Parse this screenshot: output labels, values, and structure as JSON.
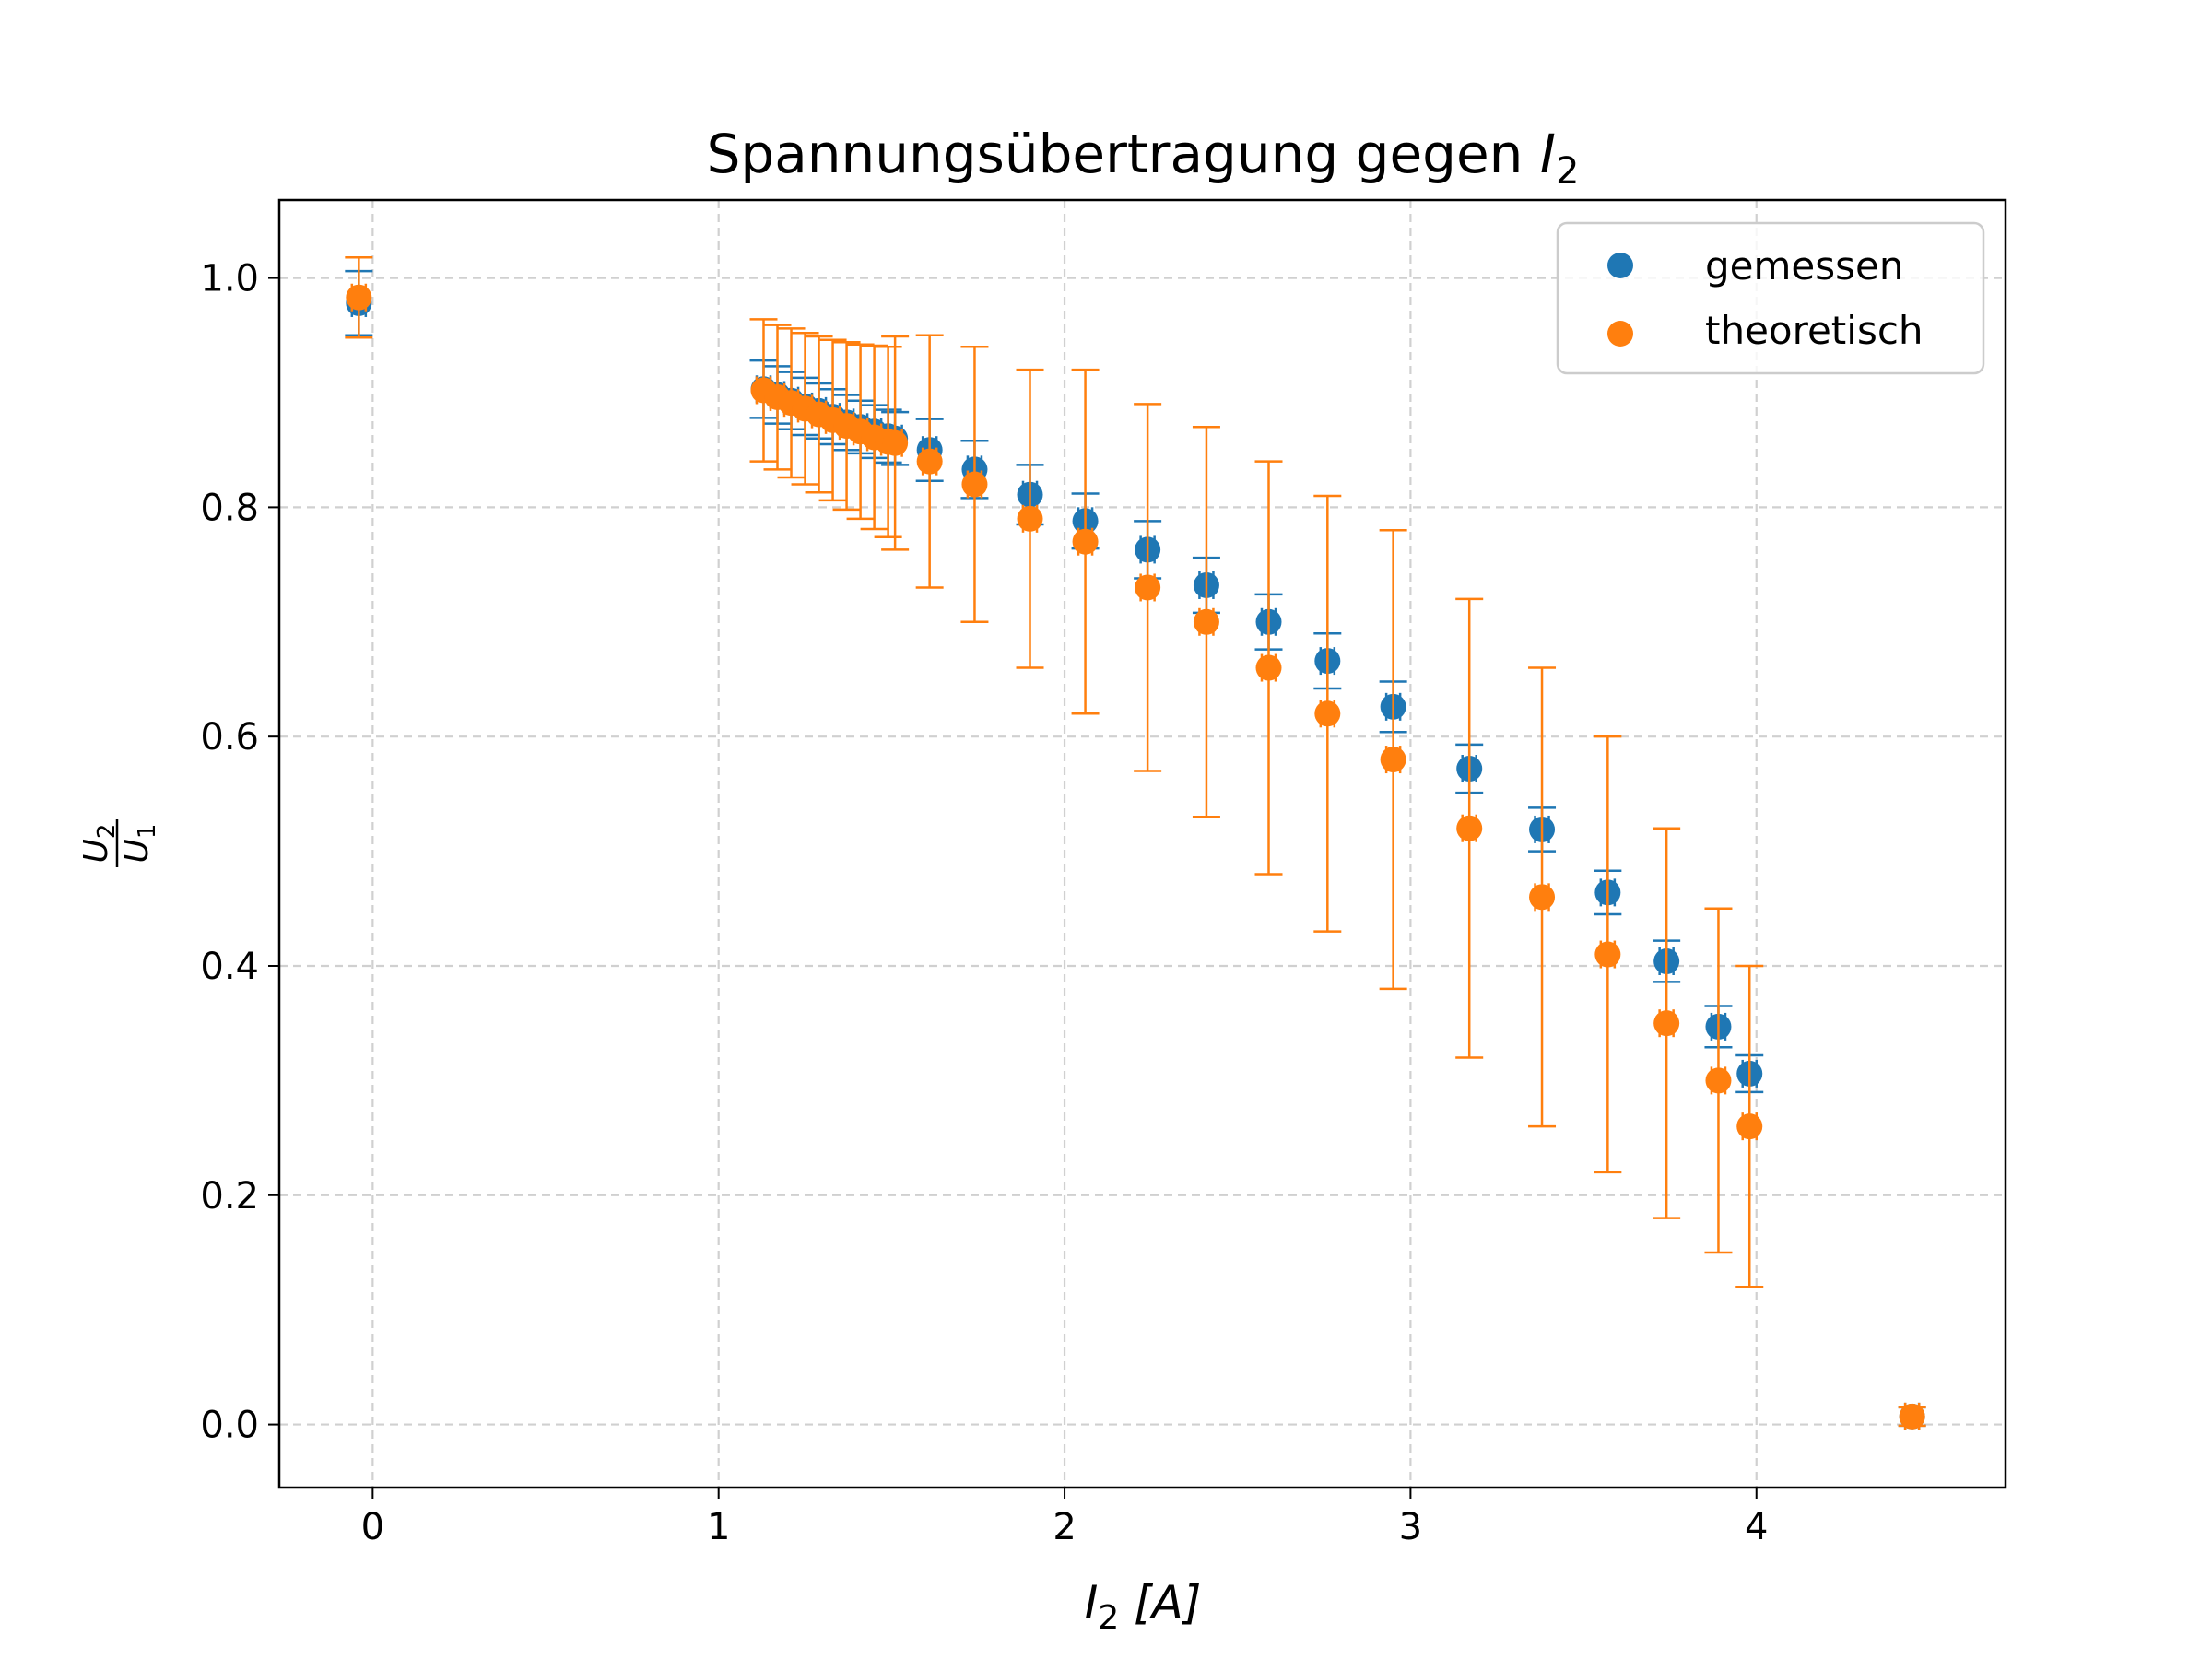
{
  "chart_data": {
    "type": "scatter",
    "title": "Spannungsübertragung gegen",
    "title_math": "I",
    "title_math_sub": "2",
    "xlabel": "I",
    "xlabel_sub": "2",
    "xlabel_unit": "[A]",
    "ylabel_num": "U",
    "ylabel_num_sub": "2",
    "ylabel_den": "U",
    "ylabel_den_sub": "1",
    "xlim": [
      -0.27,
      4.72
    ],
    "ylim": [
      -0.055,
      1.068
    ],
    "xticks": [
      0,
      1,
      2,
      3,
      4
    ],
    "yticks": [
      0.0,
      0.2,
      0.4,
      0.6,
      0.8,
      1.0
    ],
    "xtick_labels": [
      "0",
      "1",
      "2",
      "3",
      "4"
    ],
    "ytick_labels": [
      "0.0",
      "0.2",
      "0.4",
      "0.6",
      "0.8",
      "1.0"
    ],
    "grid": true,
    "legend_position": "top-right",
    "series": [
      {
        "name": "gemessen",
        "color": "#1f77b4",
        "x": [
          -0.04,
          1.13,
          1.17,
          1.21,
          1.25,
          1.29,
          1.33,
          1.37,
          1.41,
          1.45,
          1.49,
          1.51,
          1.61,
          1.74,
          1.9,
          2.06,
          2.24,
          2.41,
          2.59,
          2.76,
          2.95,
          3.17,
          3.38,
          3.57,
          3.74,
          3.89,
          3.98,
          4.45
        ],
        "y": [
          0.978,
          0.903,
          0.898,
          0.893,
          0.888,
          0.884,
          0.879,
          0.874,
          0.87,
          0.866,
          0.862,
          0.86,
          0.85,
          0.833,
          0.811,
          0.788,
          0.763,
          0.732,
          0.7,
          0.666,
          0.626,
          0.572,
          0.519,
          0.464,
          0.404,
          0.347,
          0.306,
          0.007
        ],
        "yerr": [
          0.028,
          0.025,
          0.025,
          0.025,
          0.025,
          0.024,
          0.024,
          0.024,
          0.023,
          0.023,
          0.023,
          0.023,
          0.027,
          0.025,
          0.026,
          0.024,
          0.025,
          0.024,
          0.024,
          0.024,
          0.022,
          0.021,
          0.019,
          0.019,
          0.018,
          0.018,
          0.016,
          0.008
        ],
        "xerr": [
          0.02,
          0.02,
          0.02,
          0.02,
          0.02,
          0.02,
          0.02,
          0.02,
          0.02,
          0.02,
          0.02,
          0.02,
          0.02,
          0.02,
          0.02,
          0.02,
          0.02,
          0.02,
          0.02,
          0.02,
          0.02,
          0.02,
          0.02,
          0.02,
          0.02,
          0.02,
          0.02,
          0.02
        ]
      },
      {
        "name": "theoretisch",
        "color": "#ff7f0e",
        "x": [
          -0.04,
          1.13,
          1.17,
          1.21,
          1.25,
          1.29,
          1.33,
          1.37,
          1.41,
          1.45,
          1.49,
          1.51,
          1.61,
          1.74,
          1.9,
          2.06,
          2.24,
          2.41,
          2.59,
          2.76,
          2.95,
          3.17,
          3.38,
          3.57,
          3.74,
          3.89,
          3.98,
          4.45
        ],
        "y": [
          0.983,
          0.902,
          0.896,
          0.891,
          0.886,
          0.881,
          0.876,
          0.871,
          0.866,
          0.861,
          0.857,
          0.856,
          0.84,
          0.82,
          0.79,
          0.77,
          0.73,
          0.7,
          0.66,
          0.62,
          0.58,
          0.52,
          0.46,
          0.41,
          0.35,
          0.3,
          0.26,
          0.007
        ],
        "yerr": [
          0.035,
          0.062,
          0.063,
          0.065,
          0.066,
          0.068,
          0.07,
          0.073,
          0.076,
          0.08,
          0.083,
          0.093,
          0.11,
          0.12,
          0.13,
          0.15,
          0.16,
          0.17,
          0.18,
          0.19,
          0.2,
          0.2,
          0.2,
          0.19,
          0.17,
          0.15,
          0.14,
          0.008
        ],
        "xerr": [
          0.02,
          0.02,
          0.02,
          0.02,
          0.02,
          0.02,
          0.02,
          0.02,
          0.02,
          0.02,
          0.02,
          0.02,
          0.02,
          0.02,
          0.02,
          0.02,
          0.02,
          0.02,
          0.02,
          0.02,
          0.02,
          0.02,
          0.02,
          0.02,
          0.02,
          0.02,
          0.02,
          0.02
        ]
      }
    ]
  }
}
